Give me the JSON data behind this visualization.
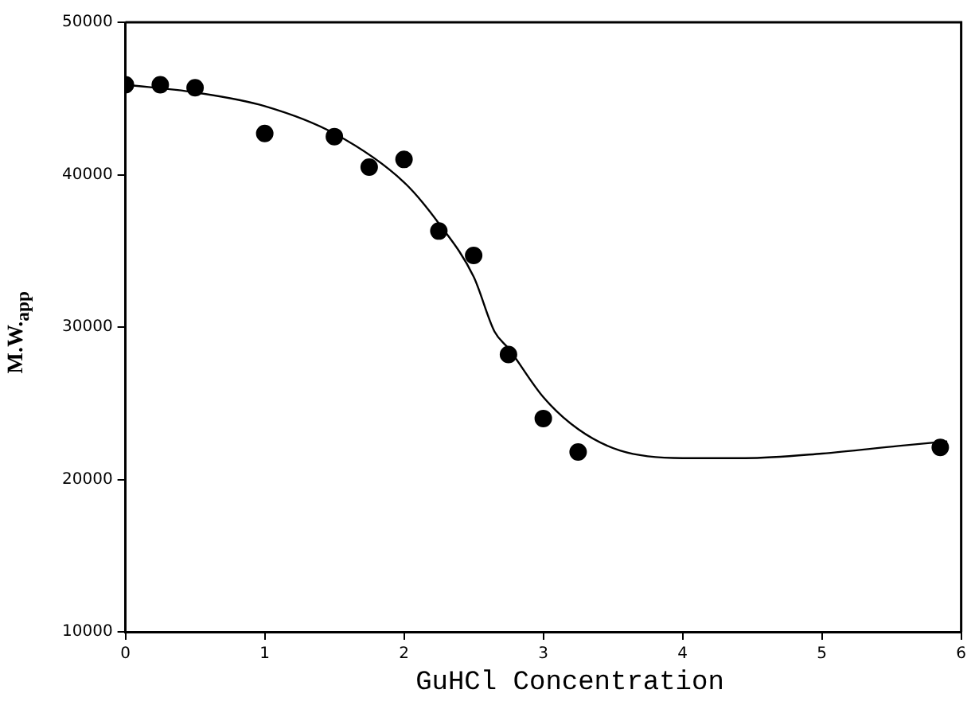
{
  "chart_data": {
    "type": "scatter",
    "xlabel": "GuHCl Concentration",
    "ylabel": "M.W.$_{app}$",
    "xlim": [
      0,
      6
    ],
    "xticks": [
      0,
      1,
      2,
      3,
      4,
      5,
      6
    ],
    "ylim": [
      10000,
      50000
    ],
    "yticks": [
      10000,
      20000,
      30000,
      40000,
      50000
    ],
    "grid": false,
    "legend": false,
    "marker": "circle",
    "series": [
      {
        "type": "scatter",
        "color": "#000000",
        "x": [
          0,
          0.25,
          0.5,
          1,
          1.5,
          1.75,
          2,
          2.25,
          2.5,
          2.75,
          3,
          3.25,
          5.85
        ],
        "values": [
          45900,
          45900,
          45700,
          42700,
          42500,
          40500,
          41000,
          36300,
          34700,
          28200,
          24000,
          21800,
          22100
        ]
      },
      {
        "type": "line",
        "color": "#000000",
        "marker": "none",
        "line_style": "solid",
        "x": [
          0,
          0.5,
          1,
          1.5,
          2,
          2.25,
          2.5,
          2.65,
          2.75,
          3,
          3.25,
          3.55,
          4,
          4.45,
          5,
          5.55,
          5.9
        ],
        "values": [
          45900,
          45400,
          44500,
          42700,
          39500,
          36800,
          33300,
          29700,
          28600,
          25400,
          23300,
          21900,
          21400,
          21400,
          21700,
          22200,
          22500
        ]
      }
    ]
  }
}
